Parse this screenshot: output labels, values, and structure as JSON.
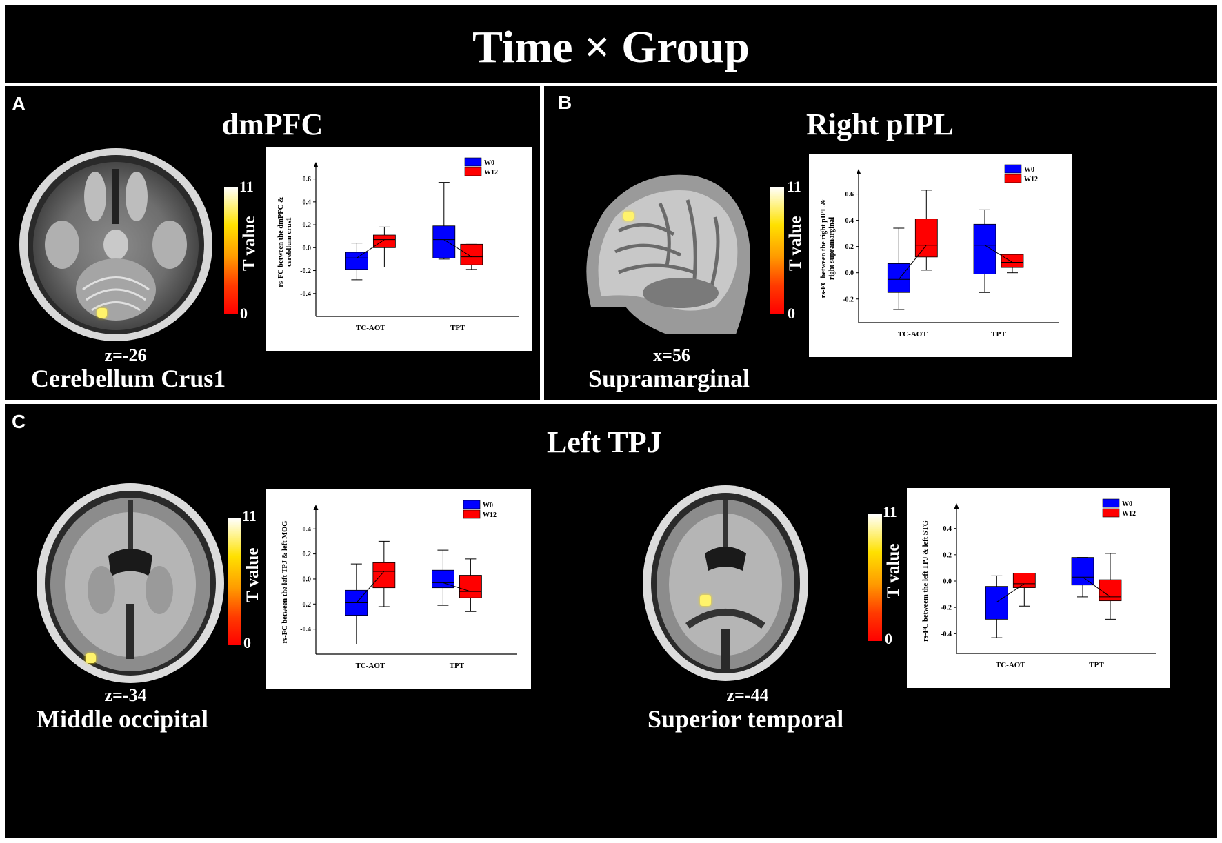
{
  "figure": {
    "title": "Time × Group",
    "panels": [
      {
        "label": "A",
        "title": "dmPFC",
        "coord": "z=-26",
        "region": "Cerebellum Crus1",
        "colorbar": {
          "label": "T value",
          "max": "11",
          "min": "0"
        }
      },
      {
        "label": "B",
        "title": "Right pIPL",
        "coord": "x=56",
        "region": "Supramarginal",
        "colorbar": {
          "label": "T value",
          "max": "11",
          "min": "0"
        }
      },
      {
        "label": "C",
        "title": "Left TPJ",
        "sub": [
          {
            "coord": "z=-34",
            "region": "Middle occipital",
            "colorbar": {
              "label": "T value",
              "max": "11",
              "min": "0"
            }
          },
          {
            "coord": "z=-44",
            "region": "Superior temporal",
            "colorbar": {
              "label": "T value",
              "max": "11",
              "min": "0"
            }
          }
        ]
      }
    ]
  },
  "colors": {
    "W0": "#0000ff",
    "W12": "#ff0000"
  },
  "chart_data": [
    {
      "type": "box",
      "panel": "A",
      "categories": [
        "TC-AOT",
        "TPT"
      ],
      "ylabel_lines": [
        "rs-FC between the dmPFC &",
        "cerebllum crus1"
      ],
      "yticks": [
        -0.4,
        -0.2,
        0.0,
        0.2,
        0.4,
        0.6
      ],
      "ylim": [
        -0.6,
        0.7
      ],
      "tick_decimals": 1,
      "legend": [
        "W0",
        "W12"
      ],
      "series": [
        {
          "name": "W0",
          "boxes": [
            {
              "min": -0.28,
              "q1": -0.19,
              "median": -0.09,
              "q3": -0.04,
              "max": 0.04
            },
            {
              "min": -0.1,
              "q1": -0.09,
              "median": 0.07,
              "q3": 0.19,
              "max": 0.57
            }
          ]
        },
        {
          "name": "W12",
          "boxes": [
            {
              "min": -0.17,
              "q1": 0.0,
              "median": 0.07,
              "q3": 0.11,
              "max": 0.18
            },
            {
              "min": -0.19,
              "q1": -0.15,
              "median": -0.08,
              "q3": 0.03,
              "max": 0.03
            }
          ]
        }
      ]
    },
    {
      "type": "box",
      "panel": "B",
      "categories": [
        "TC-AOT",
        "TPT"
      ],
      "ylabel_lines": [
        "rs-FC between the right pIPL &",
        "right supramarginal"
      ],
      "yticks": [
        -0.2,
        0.0,
        0.2,
        0.4,
        0.6
      ],
      "ylim": [
        -0.38,
        0.75
      ],
      "tick_decimals": 1,
      "legend": [
        "W0",
        "W12"
      ],
      "series": [
        {
          "name": "W0",
          "boxes": [
            {
              "min": -0.28,
              "q1": -0.15,
              "median": -0.05,
              "q3": 0.07,
              "max": 0.34
            },
            {
              "min": -0.15,
              "q1": -0.01,
              "median": 0.21,
              "q3": 0.37,
              "max": 0.48
            }
          ]
        },
        {
          "name": "W12",
          "boxes": [
            {
              "min": 0.02,
              "q1": 0.12,
              "median": 0.21,
              "q3": 0.41,
              "max": 0.63
            },
            {
              "min": 0.0,
              "q1": 0.04,
              "median": 0.08,
              "q3": 0.14,
              "max": 0.14
            }
          ]
        }
      ]
    },
    {
      "type": "box",
      "panel": "C-left",
      "categories": [
        "TC-AOT",
        "TPT"
      ],
      "ylabel_lines": [
        "rs-FC between the left TPJ & left MOG"
      ],
      "yticks": [
        -0.4,
        -0.2,
        0.0,
        0.2,
        0.4
      ],
      "ylim": [
        -0.6,
        0.55
      ],
      "tick_decimals": 1,
      "legend": [
        "W0",
        "W12"
      ],
      "series": [
        {
          "name": "W0",
          "boxes": [
            {
              "min": -0.52,
              "q1": -0.29,
              "median": -0.19,
              "q3": -0.09,
              "max": 0.12
            },
            {
              "min": -0.21,
              "q1": -0.07,
              "median": -0.03,
              "q3": 0.07,
              "max": 0.23
            }
          ]
        },
        {
          "name": "W12",
          "boxes": [
            {
              "min": -0.22,
              "q1": -0.07,
              "median": 0.06,
              "q3": 0.13,
              "max": 0.3
            },
            {
              "min": -0.26,
              "q1": -0.15,
              "median": -0.1,
              "q3": 0.03,
              "max": 0.16
            }
          ]
        }
      ]
    },
    {
      "type": "box",
      "panel": "C-right",
      "categories": [
        "TC-AOT",
        "TPT"
      ],
      "ylabel_lines": [
        "rs-FC betweem the left TPJ & left STG"
      ],
      "yticks": [
        -0.4,
        -0.2,
        0.0,
        0.2,
        0.4
      ],
      "ylim": [
        -0.55,
        0.55
      ],
      "tick_decimals": 1,
      "legend": [
        "W0",
        "W12"
      ],
      "series": [
        {
          "name": "W0",
          "boxes": [
            {
              "min": -0.43,
              "q1": -0.29,
              "median": -0.16,
              "q3": -0.04,
              "max": 0.04
            },
            {
              "min": -0.12,
              "q1": -0.03,
              "median": 0.03,
              "q3": 0.18,
              "max": 0.18
            }
          ]
        },
        {
          "name": "W12",
          "boxes": [
            {
              "min": -0.19,
              "q1": -0.05,
              "median": -0.02,
              "q3": 0.06,
              "max": 0.06
            },
            {
              "min": -0.29,
              "q1": -0.15,
              "median": -0.12,
              "q3": 0.01,
              "max": 0.21
            }
          ]
        }
      ]
    }
  ]
}
